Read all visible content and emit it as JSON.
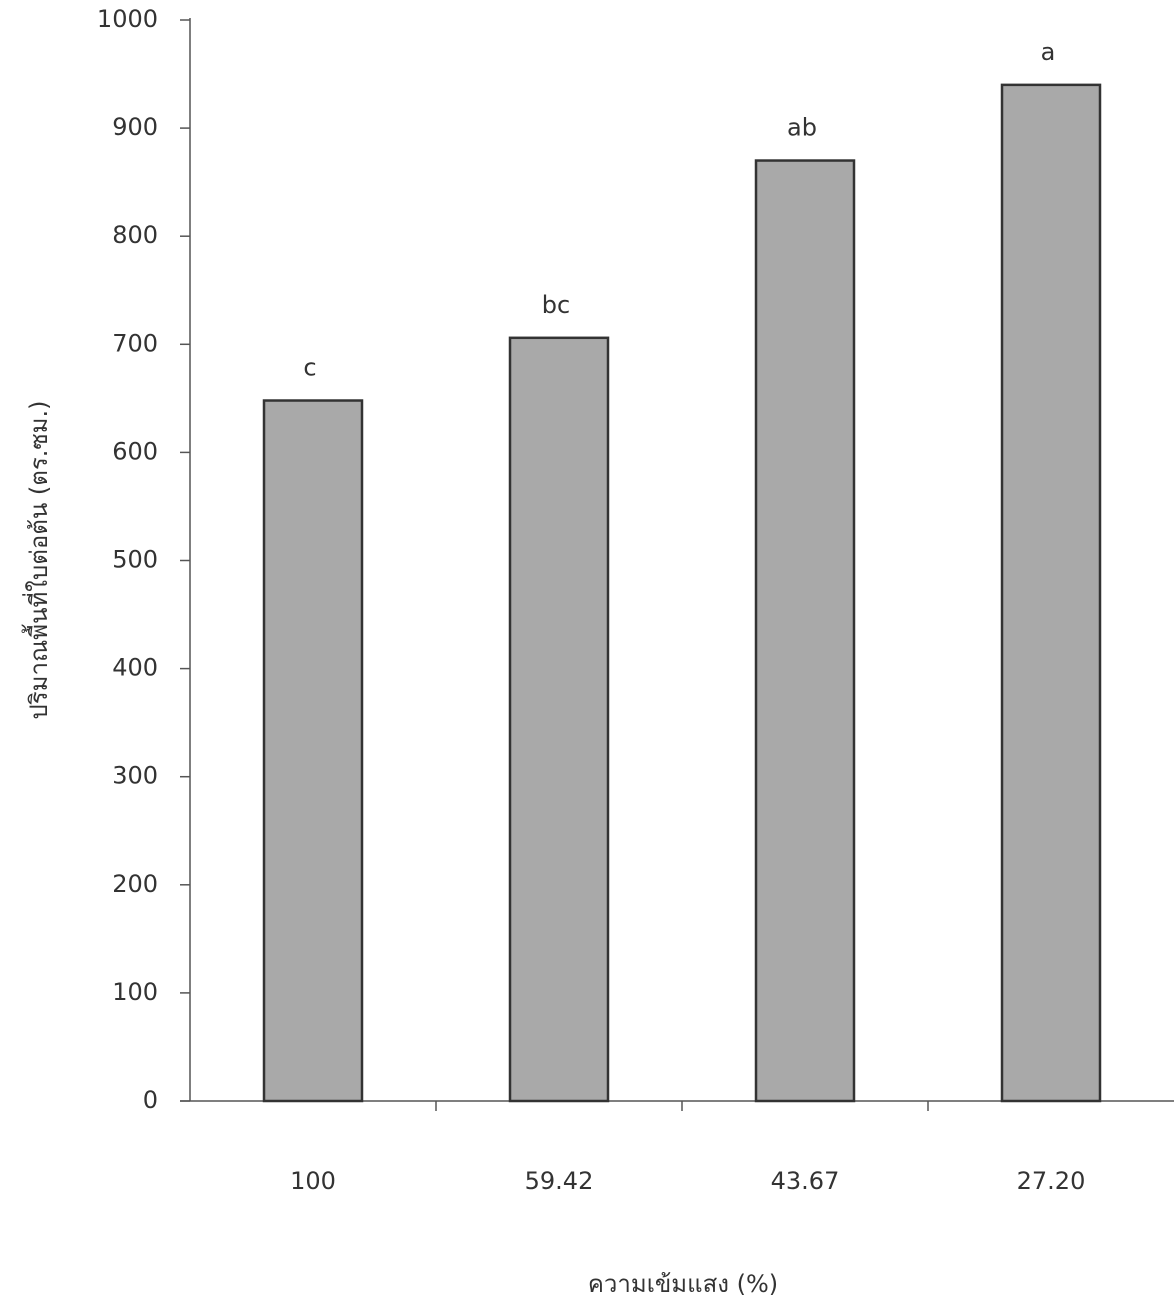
{
  "chart_data": {
    "type": "bar",
    "y_label": "ปริมาณพื้นที่ใบต่อต้น (ตร.ซม.)",
    "x_label": "ความเข้มแสง (%)",
    "categories": [
      "100",
      "59.42",
      "43.67",
      "27.20"
    ],
    "values": [
      648,
      706,
      870,
      940
    ],
    "annotations": [
      "c",
      "bc",
      "ab",
      "a"
    ],
    "color": "#a9a9a9",
    "ylim": [
      0,
      1000
    ],
    "yticks": [
      0,
      100,
      200,
      300,
      400,
      500,
      600,
      700,
      800,
      900,
      1000
    ],
    "grid": false
  }
}
